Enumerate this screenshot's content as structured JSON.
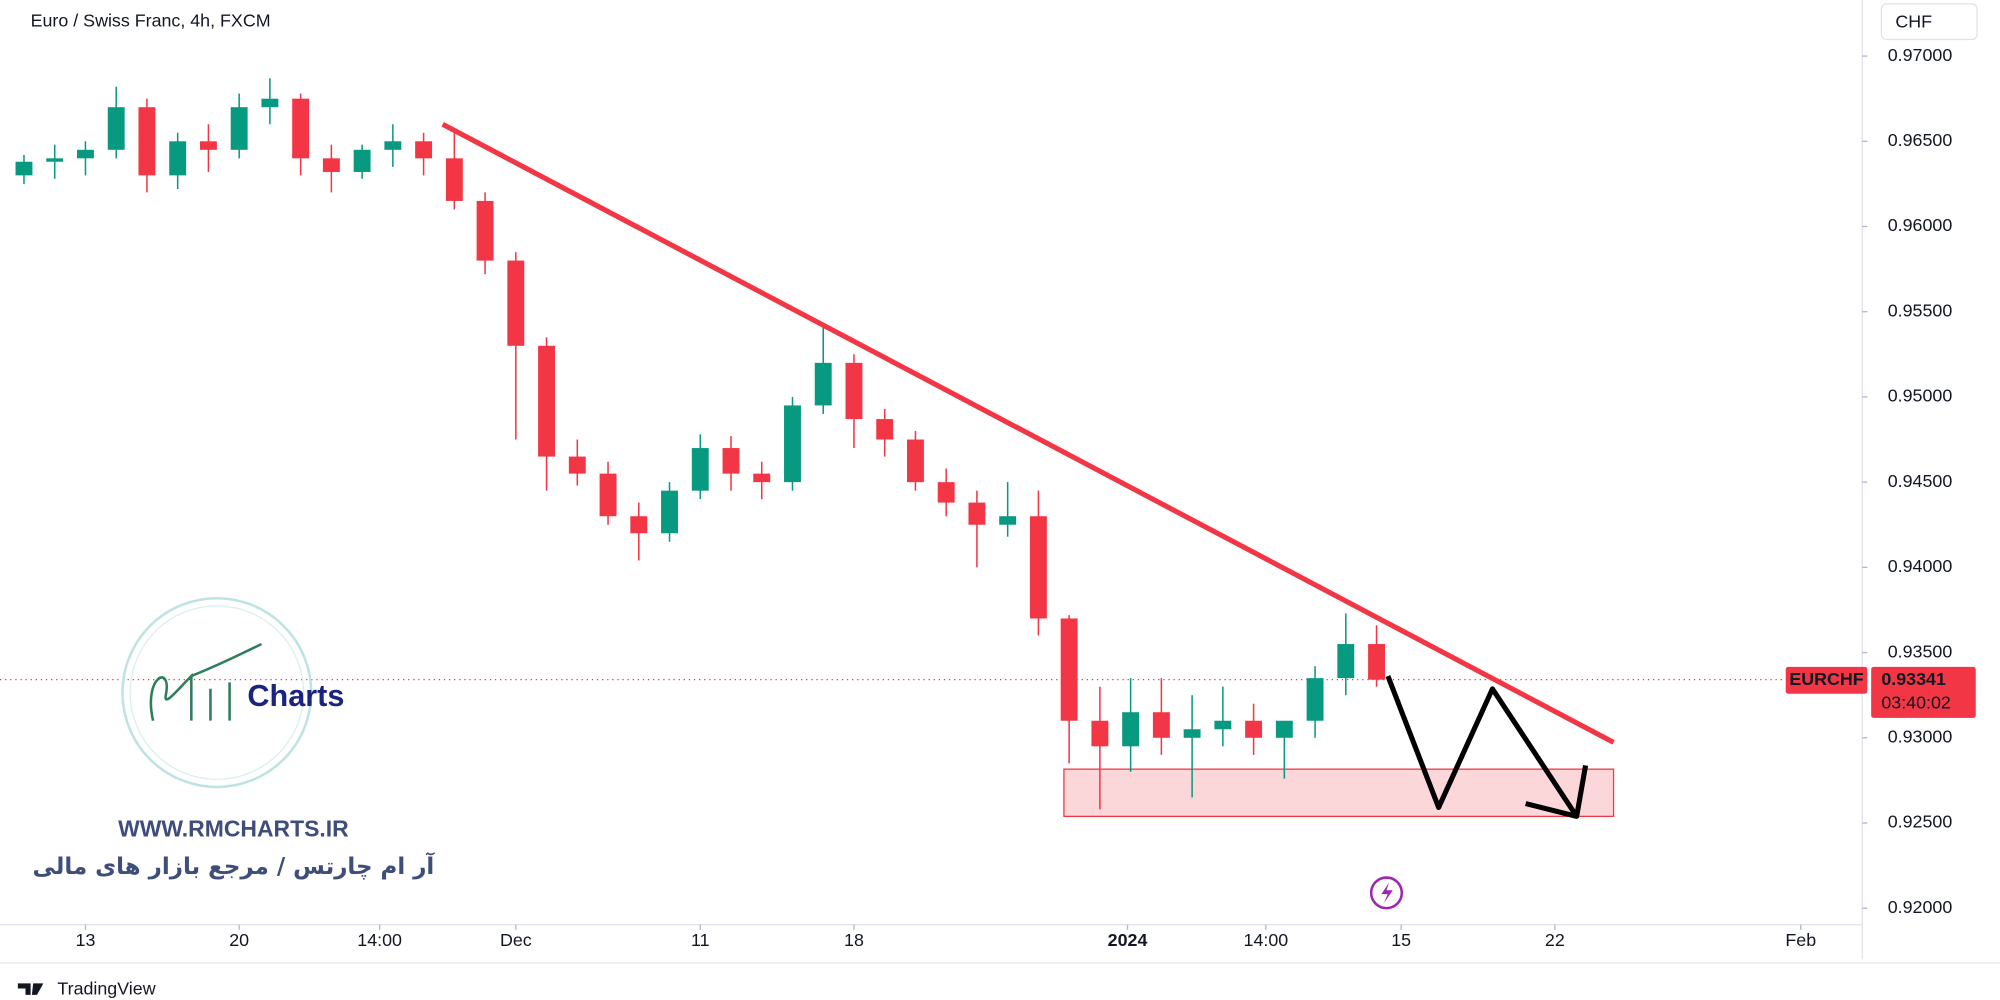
{
  "chart_data": {
    "type": "candlestick",
    "title": "Euro / Swiss Franc, 4h, FXCM",
    "currency": "CHF",
    "up_color": "#089981",
    "down_color": "#f23645",
    "x": [
      -2,
      -1,
      0,
      1,
      2,
      3,
      4,
      5,
      6,
      7,
      8,
      9,
      10,
      11,
      12,
      13,
      14,
      15,
      16,
      17,
      18,
      19,
      20,
      21,
      22,
      23,
      24,
      25,
      26,
      27,
      28,
      29,
      30,
      31,
      32,
      33,
      34,
      35,
      36,
      37,
      38,
      39,
      40,
      41,
      42
    ],
    "open": [
      0.963,
      0.9638,
      0.964,
      0.9645,
      0.967,
      0.963,
      0.965,
      0.9645,
      0.967,
      0.9675,
      0.964,
      0.9632,
      0.9645,
      0.965,
      0.964,
      0.9615,
      0.958,
      0.953,
      0.9465,
      0.9455,
      0.943,
      0.942,
      0.9445,
      0.947,
      0.9455,
      0.945,
      0.9495,
      0.952,
      0.9487,
      0.9475,
      0.945,
      0.9438,
      0.9425,
      0.943,
      0.937,
      0.931,
      0.9295,
      0.9315,
      0.93,
      0.9305,
      0.931,
      0.93,
      0.931,
      0.9335,
      0.9355
    ],
    "high": [
      0.9642,
      0.9648,
      0.965,
      0.9682,
      0.9675,
      0.9655,
      0.966,
      0.9678,
      0.9687,
      0.9678,
      0.9648,
      0.9648,
      0.966,
      0.9655,
      0.9657,
      0.962,
      0.9585,
      0.9535,
      0.9475,
      0.9462,
      0.9438,
      0.945,
      0.9478,
      0.9477,
      0.9462,
      0.95,
      0.9542,
      0.9525,
      0.9493,
      0.948,
      0.9458,
      0.9445,
      0.945,
      0.9445,
      0.9372,
      0.933,
      0.9335,
      0.9335,
      0.9325,
      0.933,
      0.932,
      0.9305,
      0.9342,
      0.9373,
      0.9366
    ],
    "low": [
      0.9625,
      0.9628,
      0.963,
      0.964,
      0.962,
      0.9622,
      0.9632,
      0.964,
      0.966,
      0.963,
      0.962,
      0.9628,
      0.9635,
      0.963,
      0.961,
      0.9572,
      0.9475,
      0.9445,
      0.9448,
      0.9425,
      0.9404,
      0.9415,
      0.944,
      0.9445,
      0.944,
      0.9445,
      0.949,
      0.947,
      0.9465,
      0.9445,
      0.943,
      0.94,
      0.9418,
      0.936,
      0.9285,
      0.9258,
      0.928,
      0.929,
      0.9265,
      0.9295,
      0.929,
      0.9276,
      0.93,
      0.9325,
      0.933
    ],
    "close": [
      0.9638,
      0.964,
      0.9645,
      0.967,
      0.963,
      0.965,
      0.9645,
      0.967,
      0.9675,
      0.964,
      0.9632,
      0.9645,
      0.965,
      0.964,
      0.9615,
      0.958,
      0.953,
      0.9465,
      0.9455,
      0.943,
      0.942,
      0.9445,
      0.947,
      0.9455,
      0.945,
      0.9495,
      0.952,
      0.9487,
      0.9475,
      0.945,
      0.9438,
      0.9425,
      0.943,
      0.937,
      0.931,
      0.9295,
      0.9315,
      0.93,
      0.9305,
      0.931,
      0.93,
      0.931,
      0.9335,
      0.9355,
      0.93341
    ],
    "xlim": [
      -2.78,
      57.8
    ],
    "ylim": [
      0.91903,
      0.97329
    ],
    "xticks": [
      {
        "value": 0,
        "label": "13"
      },
      {
        "value": 5,
        "label": "20"
      },
      {
        "value": 9.57,
        "label": "14:00"
      },
      {
        "value": 14,
        "label": "Dec"
      },
      {
        "value": 20,
        "label": "11"
      },
      {
        "value": 25,
        "label": "18"
      },
      {
        "value": 33.9,
        "label": "2024"
      },
      {
        "value": 38.4,
        "label": "14:00"
      },
      {
        "value": 42.8,
        "label": "15"
      },
      {
        "value": 47.8,
        "label": "22"
      },
      {
        "value": 55.8,
        "label": "Feb"
      }
    ],
    "yticks": [
      {
        "value": 0.97,
        "label": "0.97000"
      },
      {
        "value": 0.965,
        "label": "0.96500"
      },
      {
        "value": 0.96,
        "label": "0.96000"
      },
      {
        "value": 0.955,
        "label": "0.95500"
      },
      {
        "value": 0.95,
        "label": "0.95000"
      },
      {
        "value": 0.945,
        "label": "0.94500"
      },
      {
        "value": 0.94,
        "label": "0.94000"
      },
      {
        "value": 0.935,
        "label": "0.93500"
      },
      {
        "value": 0.93,
        "label": "0.93000"
      },
      {
        "value": 0.925,
        "label": "0.92500"
      },
      {
        "value": 0.92,
        "label": "0.92000"
      }
    ],
    "trendline": {
      "color": "#f23645",
      "x": [
        11.62,
        49.71
      ],
      "y": [
        0.966,
        0.92973
      ]
    },
    "zone": {
      "color": "#f23645",
      "x": [
        31.83,
        49.71
      ],
      "y": [
        0.92539,
        0.92816
      ]
    },
    "projection": {
      "color": "#000000",
      "x": [
        42.37,
        44.02,
        45.77,
        48.51
      ],
      "y": [
        0.93362,
        0.92591,
        0.93287,
        0.92539
      ]
    },
    "arrow_head": {
      "x": [
        46.85,
        48.51,
        48.8
      ],
      "y": [
        0.92614,
        0.92539,
        0.92838
      ]
    },
    "last_price": {
      "symbol": "EURCHF",
      "value": 0.93341,
      "countdown": "03:40:02"
    }
  },
  "watermark": {
    "logo_text": "Charts",
    "url": "WWW.RMCHARTS.IR",
    "tagline": "آر ام چارتس / مرجع بازار های مالی"
  },
  "footer": {
    "brand": "TradingView"
  }
}
